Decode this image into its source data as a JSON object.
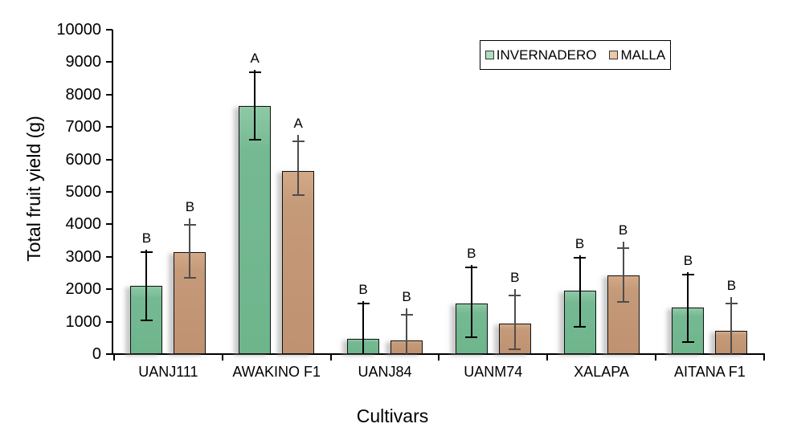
{
  "figure": {
    "background": "#ffffff"
  },
  "chart_data": {
    "type": "bar",
    "title": "",
    "xlabel": "Cultivars",
    "ylabel": "Total fruit yield (g)",
    "ylim": [
      0,
      10000
    ],
    "ytick_step": 1000,
    "ytick_labels": [
      "0",
      "1000",
      "2000",
      "3000",
      "4000",
      "5000",
      "6000",
      "7000",
      "8000",
      "9000",
      "10000"
    ],
    "categories": [
      "UANJ111",
      "AWAKINO F1",
      "UANJ84",
      "UANM74",
      "XALAPA",
      "AITANA F1"
    ],
    "grid": false,
    "legend_position": "top-right-inside",
    "series": [
      {
        "name": "INVERNADERO",
        "color": "#74b992",
        "color_light": "#b0dcc0",
        "errbar_color": "#000000",
        "values": [
          2100,
          7650,
          475,
          1550,
          1950,
          1425
        ],
        "err_top": [
          3150,
          8700,
          1550,
          2675,
          2975,
          2450
        ],
        "err_bottom": [
          1050,
          6600,
          0,
          525,
          850,
          375
        ],
        "letters": [
          "B",
          "A",
          "B",
          "B",
          "B",
          "B"
        ]
      },
      {
        "name": "MALLA",
        "color": "#c59a79",
        "color_light": "#eac8a8",
        "errbar_color": "#4d4d4d",
        "values": [
          3150,
          5650,
          425,
          950,
          2425,
          725
        ],
        "err_top": [
          3975,
          6550,
          1225,
          1800,
          3275,
          1550
        ],
        "err_bottom": [
          2350,
          4900,
          0,
          150,
          1600,
          25
        ],
        "letters": [
          "B",
          "A",
          "B",
          "B",
          "B",
          "B"
        ]
      }
    ]
  }
}
